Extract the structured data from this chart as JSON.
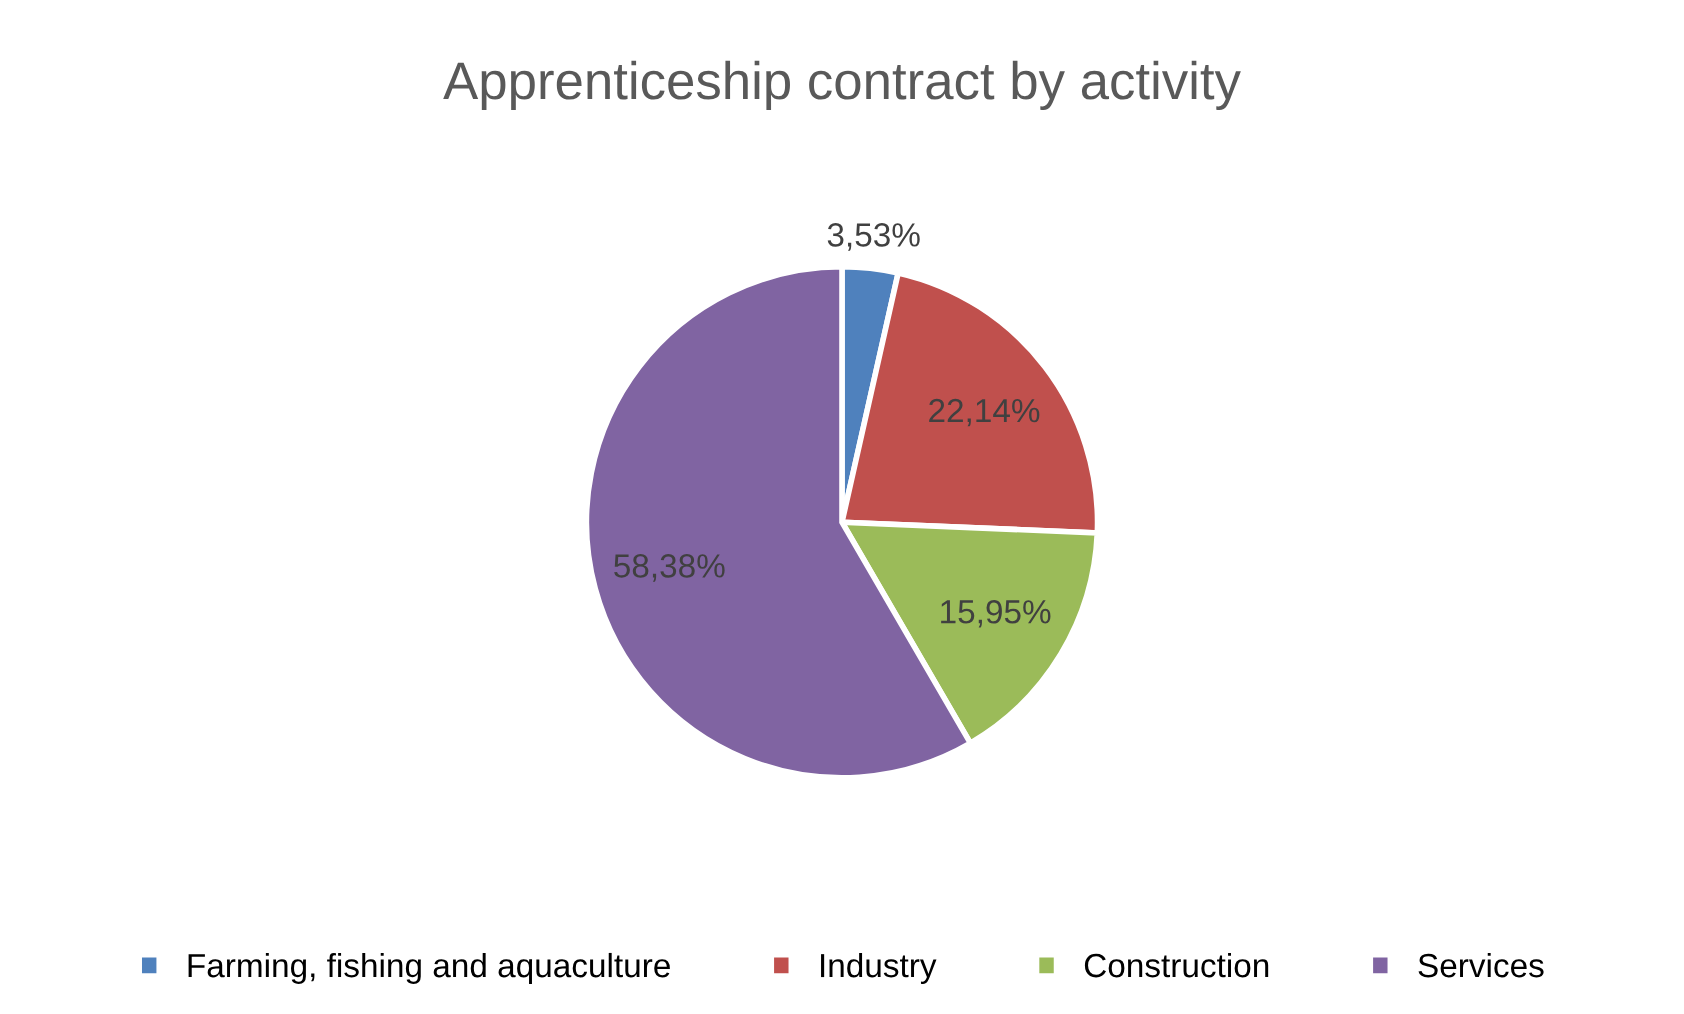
{
  "chart_data": {
    "type": "pie",
    "title": "Apprenticeship contract by activity",
    "categories": [
      "Farming, fishing and aquaculture",
      "Industry",
      "Construction",
      "Services"
    ],
    "values": [
      3.53,
      22.14,
      15.95,
      58.38
    ],
    "value_labels": [
      "3,53%",
      "22,14%",
      "15,95%",
      "58,38%"
    ],
    "colors": [
      "#4f81bd",
      "#c0504d",
      "#9bbb59",
      "#8064a2"
    ],
    "legend": "bottom"
  }
}
